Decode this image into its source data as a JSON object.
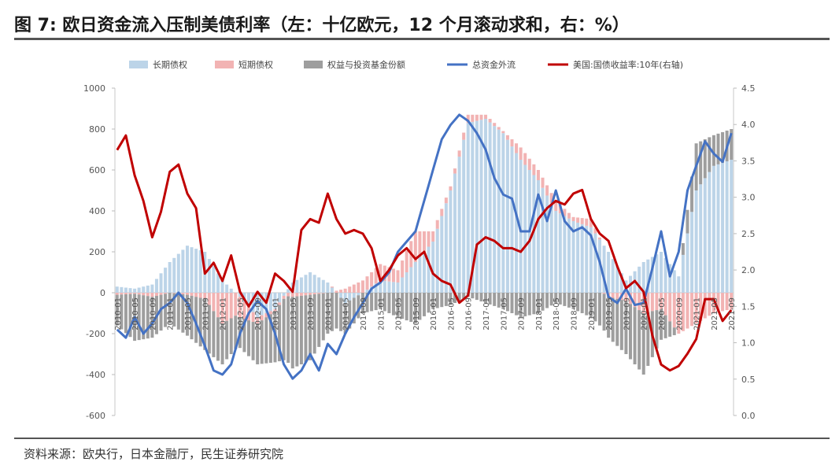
{
  "figure": {
    "title": "图 7: 欧日资金流入压制美债利率（左：十亿欧元，12 个月滚动求和，右：%）",
    "source": "资料来源：欧央行，日本金融厅，民生证券研究院"
  },
  "chart_data": {
    "type": "bar+line",
    "legend_placement": "top",
    "legend": [
      "长期债权",
      "短期债权",
      "权益与投资基金份额",
      "总资金外流",
      "美国:国债收益率:10年(右轴)"
    ],
    "colors": {
      "long_term_debt": "#bcd4e8",
      "short_term_debt": "#f2b3b3",
      "equity": "#9e9e9e",
      "total_outflow": "#4472c4",
      "us10y": "#c00000"
    },
    "y_left": {
      "min": -600,
      "max": 1000,
      "ticks": [
        -600,
        -400,
        -200,
        0,
        200,
        400,
        600,
        800,
        1000
      ]
    },
    "y_right": {
      "min": 0.0,
      "max": 4.5,
      "ticks": [
        "0.0",
        "0.5",
        "1.0",
        "1.5",
        "2.0",
        "2.5",
        "3.0",
        "3.5",
        "4.0",
        "4.5"
      ]
    },
    "x_tick_labels": [
      "2010-01",
      "2010-05",
      "2010-09",
      "2011-01",
      "2011-05",
      "2011-09",
      "2012-01",
      "2012-05",
      "2012-09",
      "2013-01",
      "2013-05",
      "2013-09",
      "2014-01",
      "2014-05",
      "2014-09",
      "2015-01",
      "2015-05",
      "2015-09",
      "2016-01",
      "2016-05",
      "2016-09",
      "2017-01",
      "2017-05",
      "2017-09",
      "2018-01",
      "2018-05",
      "2018-09",
      "2019-01",
      "2019-05",
      "2019-09",
      "2020-01",
      "2020-05",
      "2020-09",
      "2021-01",
      "2021-05",
      "2021-09"
    ],
    "x_start": "2010-01",
    "x_end": "2021-09",
    "series": [
      {
        "name": "长期债权",
        "kind": "bar",
        "keyframes": [
          [
            "2010-01",
            30
          ],
          [
            "2010-05",
            20
          ],
          [
            "2010-09",
            40
          ],
          [
            "2011-01",
            150
          ],
          [
            "2011-05",
            230
          ],
          [
            "2011-09",
            200
          ],
          [
            "2012-01",
            60
          ],
          [
            "2012-05",
            -20
          ],
          [
            "2012-09",
            -120
          ],
          [
            "2013-01",
            -80
          ],
          [
            "2013-05",
            50
          ],
          [
            "2013-09",
            100
          ],
          [
            "2014-01",
            50
          ],
          [
            "2014-05",
            -50
          ],
          [
            "2014-09",
            0
          ],
          [
            "2015-01",
            60
          ],
          [
            "2015-05",
            50
          ],
          [
            "2015-09",
            150
          ],
          [
            "2016-01",
            250
          ],
          [
            "2016-05",
            500
          ],
          [
            "2016-09",
            830
          ],
          [
            "2017-01",
            850
          ],
          [
            "2017-05",
            780
          ],
          [
            "2017-09",
            650
          ],
          [
            "2018-01",
            550
          ],
          [
            "2018-05",
            400
          ],
          [
            "2018-09",
            350
          ],
          [
            "2019-01",
            320
          ],
          [
            "2019-05",
            200
          ],
          [
            "2019-09",
            60
          ],
          [
            "2020-01",
            150
          ],
          [
            "2020-05",
            200
          ],
          [
            "2020-09",
            80
          ],
          [
            "2021-01",
            500
          ],
          [
            "2021-05",
            620
          ],
          [
            "2021-09",
            650
          ]
        ]
      },
      {
        "name": "短期债权",
        "kind": "bar",
        "keyframes": [
          [
            "2010-01",
            -10
          ],
          [
            "2010-05",
            -5
          ],
          [
            "2010-09",
            -20
          ],
          [
            "2011-01",
            0
          ],
          [
            "2011-05",
            -10
          ],
          [
            "2011-09",
            -30
          ],
          [
            "2012-01",
            -150
          ],
          [
            "2012-05",
            -100
          ],
          [
            "2012-09",
            -30
          ],
          [
            "2013-01",
            -10
          ],
          [
            "2013-05",
            -20
          ],
          [
            "2013-09",
            -10
          ],
          [
            "2014-01",
            0
          ],
          [
            "2014-05",
            20
          ],
          [
            "2014-09",
            60
          ],
          [
            "2015-01",
            80
          ],
          [
            "2015-05",
            60
          ],
          [
            "2015-09",
            150
          ],
          [
            "2016-01",
            50
          ],
          [
            "2016-05",
            20
          ],
          [
            "2016-09",
            40
          ],
          [
            "2017-01",
            20
          ],
          [
            "2017-05",
            10
          ],
          [
            "2017-09",
            60
          ],
          [
            "2018-01",
            50
          ],
          [
            "2018-05",
            50
          ],
          [
            "2018-09",
            20
          ],
          [
            "2019-01",
            40
          ],
          [
            "2019-05",
            -20
          ],
          [
            "2019-09",
            -40
          ],
          [
            "2020-01",
            -100
          ],
          [
            "2020-05",
            -80
          ],
          [
            "2020-09",
            -200
          ],
          [
            "2021-01",
            -150
          ],
          [
            "2021-05",
            -100
          ],
          [
            "2021-09",
            -80
          ]
        ]
      },
      {
        "name": "权益与投资基金份额",
        "kind": "bar",
        "keyframes": [
          [
            "2010-01",
            -150
          ],
          [
            "2010-05",
            -230
          ],
          [
            "2010-09",
            -200
          ],
          [
            "2011-01",
            -150
          ],
          [
            "2011-05",
            -200
          ],
          [
            "2011-09",
            -250
          ],
          [
            "2012-01",
            -200
          ],
          [
            "2012-05",
            -150
          ],
          [
            "2012-09",
            -200
          ],
          [
            "2013-01",
            -250
          ],
          [
            "2013-05",
            -350
          ],
          [
            "2013-09",
            -320
          ],
          [
            "2014-01",
            -200
          ],
          [
            "2014-05",
            -150
          ],
          [
            "2014-09",
            -100
          ],
          [
            "2015-01",
            -80
          ],
          [
            "2015-05",
            -120
          ],
          [
            "2015-09",
            -150
          ],
          [
            "2016-01",
            -80
          ],
          [
            "2016-05",
            -60
          ],
          [
            "2016-09",
            -20
          ],
          [
            "2017-01",
            -50
          ],
          [
            "2017-05",
            -80
          ],
          [
            "2017-09",
            -120
          ],
          [
            "2018-01",
            -100
          ],
          [
            "2018-05",
            -50
          ],
          [
            "2018-09",
            -80
          ],
          [
            "2019-01",
            -120
          ],
          [
            "2019-05",
            -200
          ],
          [
            "2019-09",
            -260
          ],
          [
            "2020-01",
            -300
          ],
          [
            "2020-05",
            -150
          ],
          [
            "2020-09",
            0
          ],
          [
            "2021-01",
            230
          ],
          [
            "2021-05",
            150
          ],
          [
            "2021-09",
            150
          ]
        ]
      },
      {
        "name": "总资金外流",
        "kind": "line",
        "axis": "left",
        "keyframes": [
          [
            "2010-01",
            -180
          ],
          [
            "2010-03",
            -220
          ],
          [
            "2010-05",
            -120
          ],
          [
            "2010-07",
            -200
          ],
          [
            "2010-09",
            -150
          ],
          [
            "2010-11",
            -80
          ],
          [
            "2011-01",
            -50
          ],
          [
            "2011-03",
            0
          ],
          [
            "2011-05",
            -50
          ],
          [
            "2011-07",
            -150
          ],
          [
            "2011-09",
            -260
          ],
          [
            "2011-11",
            -380
          ],
          [
            "2012-01",
            -400
          ],
          [
            "2012-03",
            -350
          ],
          [
            "2012-05",
            -200
          ],
          [
            "2012-07",
            -100
          ],
          [
            "2012-09",
            -40
          ],
          [
            "2012-11",
            -80
          ],
          [
            "2013-01",
            -200
          ],
          [
            "2013-03",
            -350
          ],
          [
            "2013-05",
            -420
          ],
          [
            "2013-07",
            -380
          ],
          [
            "2013-09",
            -300
          ],
          [
            "2013-11",
            -380
          ],
          [
            "2014-01",
            -250
          ],
          [
            "2014-03",
            -300
          ],
          [
            "2014-05",
            -200
          ],
          [
            "2014-07",
            -120
          ],
          [
            "2014-09",
            -50
          ],
          [
            "2014-11",
            20
          ],
          [
            "2015-01",
            50
          ],
          [
            "2015-03",
            100
          ],
          [
            "2015-05",
            200
          ],
          [
            "2015-07",
            250
          ],
          [
            "2015-09",
            300
          ],
          [
            "2015-11",
            450
          ],
          [
            "2016-01",
            600
          ],
          [
            "2016-03",
            750
          ],
          [
            "2016-05",
            820
          ],
          [
            "2016-07",
            870
          ],
          [
            "2016-09",
            840
          ],
          [
            "2016-11",
            780
          ],
          [
            "2017-01",
            700
          ],
          [
            "2017-03",
            560
          ],
          [
            "2017-05",
            480
          ],
          [
            "2017-07",
            460
          ],
          [
            "2017-09",
            300
          ],
          [
            "2017-11",
            300
          ],
          [
            "2018-01",
            480
          ],
          [
            "2018-03",
            350
          ],
          [
            "2018-05",
            500
          ],
          [
            "2018-07",
            350
          ],
          [
            "2018-09",
            300
          ],
          [
            "2018-11",
            320
          ],
          [
            "2019-01",
            280
          ],
          [
            "2019-03",
            150
          ],
          [
            "2019-05",
            -20
          ],
          [
            "2019-07",
            -50
          ],
          [
            "2019-09",
            20
          ],
          [
            "2019-11",
            -60
          ],
          [
            "2020-01",
            -50
          ],
          [
            "2020-03",
            120
          ],
          [
            "2020-05",
            300
          ],
          [
            "2020-07",
            80
          ],
          [
            "2020-09",
            200
          ],
          [
            "2020-11",
            500
          ],
          [
            "2021-01",
            620
          ],
          [
            "2021-03",
            740
          ],
          [
            "2021-05",
            680
          ],
          [
            "2021-07",
            640
          ],
          [
            "2021-09",
            780
          ]
        ]
      },
      {
        "name": "美国:国债收益率:10年(右轴)",
        "kind": "line",
        "axis": "right",
        "keyframes": [
          [
            "2010-01",
            3.65
          ],
          [
            "2010-03",
            3.85
          ],
          [
            "2010-05",
            3.3
          ],
          [
            "2010-07",
            2.95
          ],
          [
            "2010-09",
            2.45
          ],
          [
            "2010-11",
            2.8
          ],
          [
            "2011-01",
            3.35
          ],
          [
            "2011-03",
            3.45
          ],
          [
            "2011-05",
            3.05
          ],
          [
            "2011-07",
            2.85
          ],
          [
            "2011-09",
            1.95
          ],
          [
            "2011-11",
            2.1
          ],
          [
            "2012-01",
            1.85
          ],
          [
            "2012-03",
            2.2
          ],
          [
            "2012-05",
            1.7
          ],
          [
            "2012-07",
            1.5
          ],
          [
            "2012-09",
            1.7
          ],
          [
            "2012-11",
            1.55
          ],
          [
            "2013-01",
            1.95
          ],
          [
            "2013-03",
            1.85
          ],
          [
            "2013-05",
            1.7
          ],
          [
            "2013-07",
            2.55
          ],
          [
            "2013-09",
            2.7
          ],
          [
            "2013-11",
            2.65
          ],
          [
            "2014-01",
            3.05
          ],
          [
            "2014-03",
            2.7
          ],
          [
            "2014-05",
            2.5
          ],
          [
            "2014-07",
            2.55
          ],
          [
            "2014-09",
            2.5
          ],
          [
            "2014-11",
            2.3
          ],
          [
            "2015-01",
            1.85
          ],
          [
            "2015-03",
            2.0
          ],
          [
            "2015-05",
            2.2
          ],
          [
            "2015-07",
            2.3
          ],
          [
            "2015-09",
            2.15
          ],
          [
            "2015-11",
            2.25
          ],
          [
            "2016-01",
            1.95
          ],
          [
            "2016-03",
            1.85
          ],
          [
            "2016-05",
            1.8
          ],
          [
            "2016-07",
            1.55
          ],
          [
            "2016-09",
            1.65
          ],
          [
            "2016-11",
            2.35
          ],
          [
            "2017-01",
            2.45
          ],
          [
            "2017-03",
            2.4
          ],
          [
            "2017-05",
            2.3
          ],
          [
            "2017-07",
            2.3
          ],
          [
            "2017-09",
            2.25
          ],
          [
            "2017-11",
            2.4
          ],
          [
            "2018-01",
            2.7
          ],
          [
            "2018-03",
            2.85
          ],
          [
            "2018-05",
            2.95
          ],
          [
            "2018-07",
            2.9
          ],
          [
            "2018-09",
            3.05
          ],
          [
            "2018-11",
            3.1
          ],
          [
            "2019-01",
            2.7
          ],
          [
            "2019-03",
            2.5
          ],
          [
            "2019-05",
            2.4
          ],
          [
            "2019-07",
            2.05
          ],
          [
            "2019-09",
            1.75
          ],
          [
            "2019-11",
            1.85
          ],
          [
            "2020-01",
            1.7
          ],
          [
            "2020-03",
            1.1
          ],
          [
            "2020-05",
            0.7
          ],
          [
            "2020-07",
            0.62
          ],
          [
            "2020-09",
            0.68
          ],
          [
            "2020-11",
            0.85
          ],
          [
            "2021-01",
            1.05
          ],
          [
            "2021-03",
            1.6
          ],
          [
            "2021-05",
            1.6
          ],
          [
            "2021-07",
            1.3
          ],
          [
            "2021-09",
            1.45
          ]
        ]
      }
    ]
  }
}
